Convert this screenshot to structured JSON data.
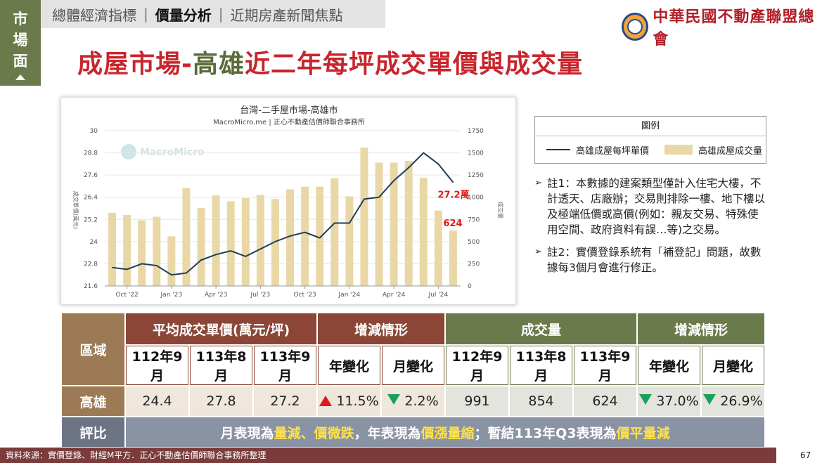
{
  "side_tag": [
    "市",
    "場",
    "面"
  ],
  "nav": {
    "items": [
      "總體經濟指標",
      "價量分析",
      "近期房產新聞焦點"
    ],
    "active_index": 1,
    "separator": "|"
  },
  "logo": {
    "name": "中華民國不動產聯盟總會"
  },
  "title": {
    "part1": "成屋市場-",
    "part2": "高雄",
    "part3": "近二年每坪成交單價與成交量"
  },
  "legend": {
    "header": "圖例",
    "line_label": "高雄成屋每坪單價",
    "bar_label": "高雄成屋成交量"
  },
  "notes": [
    "註1：本數據的建案類型僅計入住宅大樓，不計透天、店廠辦；交易則排除一樓、地下樓以及極端低價或高價(例如：親友交易、特殊使用空間、政府資料有誤…等)之交易。",
    "註2：實價登錄系統有「補登記」問題，故數據每3個月會進行修正。"
  ],
  "chart_data": {
    "type": "bar+line",
    "title": "台灣-二手屋市場-高雄市",
    "subtitle": "MacroMicro.me | 正心不動產估價師聯合事務所",
    "watermark": "MacroMicro",
    "y_left": {
      "label": "成交單價(萬元)",
      "ticks": [
        "30",
        "28.8",
        "27.6",
        "26.4",
        "25.2",
        "24",
        "22.8",
        "21.6"
      ],
      "min": 21.6,
      "max": 30
    },
    "y_right": {
      "label": "成交量",
      "ticks": [
        "1750",
        "1500",
        "1250",
        "1000",
        "750",
        "500",
        "250",
        "0"
      ],
      "min": 0,
      "max": 1750
    },
    "x_ticks": [
      {
        "label": "Oct '22",
        "index": 1
      },
      {
        "label": "Jan '23",
        "index": 4
      },
      {
        "label": "Apr '23",
        "index": 7
      },
      {
        "label": "Jul '23",
        "index": 10
      },
      {
        "label": "Oct '23",
        "index": 13
      },
      {
        "label": "Jan '24",
        "index": 16
      },
      {
        "label": "Apr '24",
        "index": 19
      },
      {
        "label": "Jul '24",
        "index": 22
      }
    ],
    "series": [
      {
        "name": "高雄成屋成交量",
        "kind": "bar",
        "axis": "right",
        "values": [
          825,
          800,
          740,
          780,
          560,
          1105,
          880,
          1020,
          955,
          990,
          1025,
          980,
          1090,
          1120,
          1120,
          1215,
          1010,
          1560,
          1390,
          1390,
          1410,
          1220,
          850,
          624
        ]
      },
      {
        "name": "高雄成屋每坪單價",
        "kind": "line",
        "axis": "left",
        "values": [
          22.6,
          22.5,
          22.8,
          22.7,
          22.2,
          22.3,
          23.0,
          23.3,
          23.5,
          23.2,
          23.6,
          24.0,
          24.3,
          24.5,
          24.2,
          25.0,
          25.0,
          26.3,
          26.4,
          27.3,
          28.0,
          28.8,
          28.2,
          27.2
        ]
      }
    ],
    "annotations": [
      {
        "text": "27.2萬",
        "target": "line_last"
      },
      {
        "text": "624",
        "target": "bar_last"
      }
    ]
  },
  "table": {
    "region_header": "區域",
    "price_header": "平均成交單價(萬元/坪)",
    "change_header": "增減情形",
    "volume_header": "成交量",
    "change_header2": "增減情形",
    "sub_headers": [
      "112年9月",
      "113年8月",
      "113年9月",
      "年變化",
      "月變化",
      "112年9月",
      "113年8月",
      "113年9月",
      "年變化",
      "月變化"
    ],
    "row": {
      "region": "高雄",
      "price": [
        "24.4",
        "27.8",
        "27.2"
      ],
      "price_yoy": {
        "dir": "up",
        "value": "11.5%"
      },
      "price_mom": {
        "dir": "down",
        "value": "2.2%"
      },
      "volume": [
        "991",
        "854",
        "624"
      ],
      "vol_yoy": {
        "dir": "down",
        "value": "37.0%"
      },
      "vol_mom": {
        "dir": "down",
        "value": "26.9%"
      }
    },
    "eval_header": "評比",
    "eval": {
      "t1": "月表現為",
      "h1": "量減、價微跌",
      "t2": "，年表現為",
      "h2": "價漲量縮",
      "t3": "；暫結113年Q3表現為",
      "h3": "價平量減"
    }
  },
  "footer": {
    "source": "資料來源：實價登錄、財經M平方．正心不動產估價師聯合事務所整理",
    "page": "67"
  },
  "colors": {
    "red": "#c8262d",
    "olive": "#6b7a4a",
    "brown": "#8b4637",
    "line": "#1e3d5a",
    "bar": "#e9d8a6",
    "highlight": "#ffe24a"
  }
}
